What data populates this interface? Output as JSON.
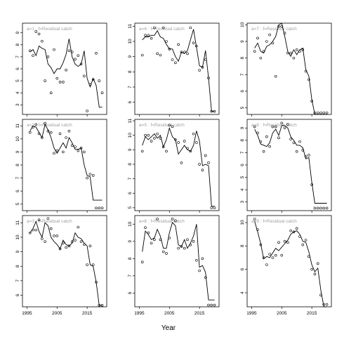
{
  "figure": {
    "xlabel": "Year",
    "x_ticks": [
      1995,
      2005,
      2015
    ]
  },
  "colors": {
    "line": "#000000",
    "strip": "#a0a0a0",
    "axis": "#000000"
  },
  "chart_data": [
    {
      "type": "line",
      "title": "a=1  :  f=Residual catch",
      "x": [
        1996,
        1997,
        1998,
        1999,
        2000,
        2001,
        2002,
        2003,
        2004,
        2005,
        2006,
        2007,
        2008,
        2009,
        2010,
        2011,
        2012,
        2013,
        2014,
        2015,
        2016,
        2017,
        2018,
        2019,
        2020
      ],
      "observed": [
        7.5,
        7.1,
        9.1,
        8.9,
        8.3,
        5.0,
        7.0,
        4.0,
        7.6,
        5.2,
        4.9,
        4.9,
        5.9,
        7.5,
        7.4,
        6.8,
        7.1,
        6.4,
        5.4,
        2.5,
        4.7,
        5.1,
        7.3,
        5.0,
        4.0
      ],
      "fitted": [
        7.4,
        7.6,
        7.1,
        7.9,
        7.7,
        7.6,
        6.4,
        6.1,
        5.6,
        6.0,
        6.0,
        6.5,
        7.2,
        8.5,
        7.0,
        6.4,
        6.2,
        6.4,
        7.5,
        5.2,
        4.5,
        5.2,
        4.6,
        2.8,
        2.8
      ],
      "ylim": [
        2.2,
        9.8
      ],
      "yticks": [
        3,
        4,
        5,
        6,
        7,
        8,
        9
      ]
    },
    {
      "type": "line",
      "title": "a=4  :  f=Residual catch",
      "x": [
        1996,
        1997,
        1998,
        1999,
        2000,
        2001,
        2002,
        2003,
        2004,
        2005,
        2006,
        2007,
        2008,
        2009,
        2010,
        2011,
        2012,
        2013,
        2014,
        2015,
        2016,
        2017,
        2018,
        2019,
        2020
      ],
      "observed": [
        9.1,
        10.4,
        10.4,
        10.2,
        10.9,
        9.2,
        9.1,
        10.9,
        10.0,
        9.5,
        8.8,
        8.6,
        9.8,
        9.3,
        9.3,
        9.2,
        10.9,
        9.9,
        9.7,
        8.1,
        8.3,
        8.8,
        7.6,
        5.4,
        5.4
      ],
      "fitted": [
        10.1,
        10.3,
        10.3,
        10.4,
        10.4,
        10.7,
        10.3,
        10.2,
        9.8,
        9.5,
        9.5,
        9.0,
        8.7,
        9.3,
        9.2,
        9.4,
        10.1,
        10.8,
        9.6,
        8.4,
        8.3,
        9.4,
        7.6,
        5.4,
        5.4
      ],
      "ylim": [
        5.2,
        11.2
      ],
      "yticks": [
        6,
        7,
        8,
        9,
        10,
        11
      ]
    },
    {
      "type": "line",
      "title": "a=7  :  f=Residual catch",
      "x": [
        1996,
        1997,
        1998,
        1999,
        2000,
        2001,
        2002,
        2003,
        2004,
        2005,
        2006,
        2007,
        2008,
        2009,
        2010,
        2011,
        2012,
        2013,
        2014,
        2015,
        2016,
        2017,
        2018,
        2019,
        2020
      ],
      "observed": [
        8.4,
        9.2,
        8.0,
        8.4,
        9.0,
        9.4,
        8.9,
        6.9,
        9.9,
        9.9,
        9.5,
        8.3,
        8.3,
        8.0,
        8.5,
        8.4,
        8.5,
        7.2,
        6.7,
        5.4,
        4.7,
        4.7,
        4.7,
        4.7,
        4.7
      ],
      "fitted": [
        8.6,
        8.9,
        8.4,
        8.3,
        8.7,
        8.8,
        9.0,
        9.3,
        10.0,
        10.1,
        9.3,
        8.4,
        8.1,
        8.5,
        8.2,
        8.5,
        8.6,
        7.3,
        6.9,
        5.5,
        4.6,
        4.6,
        4.6,
        4.6,
        4.6
      ],
      "ylim": [
        4.6,
        10.1
      ],
      "yticks": [
        5,
        6,
        7,
        8,
        9,
        10
      ]
    },
    {
      "type": "line",
      "title": "a=2  :  f=Residual catch",
      "x": [
        1996,
        1997,
        1998,
        1999,
        2000,
        2001,
        2002,
        2003,
        2004,
        2005,
        2006,
        2007,
        2008,
        2009,
        2010,
        2011,
        2012,
        2013,
        2014,
        2015,
        2016,
        2017,
        2018,
        2019,
        2020
      ],
      "observed": [
        10.5,
        10.9,
        11.1,
        10.4,
        10.1,
        11.2,
        10.6,
        10.5,
        8.9,
        9.1,
        10.4,
        9.0,
        10.1,
        10.6,
        9.5,
        9.4,
        9.1,
        9.3,
        9.0,
        7.0,
        7.3,
        7.2,
        4.7,
        4.7,
        4.7
      ],
      "fitted": [
        10.6,
        11.0,
        10.9,
        10.5,
        10.1,
        11.1,
        10.7,
        10.1,
        9.3,
        8.9,
        9.3,
        9.7,
        9.3,
        10.1,
        9.7,
        9.2,
        9.2,
        9.3,
        8.0,
        7.2,
        7.1,
        5.3,
        5.3,
        5.3,
        5.3
      ],
      "ylim": [
        4.5,
        11.5
      ],
      "yticks": [
        5,
        6,
        7,
        8,
        9,
        10,
        11
      ]
    },
    {
      "type": "line",
      "title": "a=5  :  f=Residual catch",
      "x": [
        1996,
        1997,
        1998,
        1999,
        2000,
        2001,
        2002,
        2003,
        2004,
        2005,
        2006,
        2007,
        2008,
        2009,
        2010,
        2011,
        2012,
        2013,
        2014,
        2015,
        2016,
        2017,
        2018,
        2019,
        2020
      ],
      "observed": [
        8.9,
        10.0,
        10.0,
        9.6,
        9.8,
        10.1,
        9.8,
        9.2,
        8.9,
        10.7,
        10.6,
        9.7,
        9.5,
        8.1,
        9.6,
        9.1,
        8.9,
        10.1,
        9.5,
        8.0,
        7.6,
        8.6,
        8.1,
        5.0,
        5.0
      ],
      "fitted": [
        9.3,
        9.9,
        9.7,
        9.9,
        10.1,
        9.8,
        10.0,
        9.2,
        9.7,
        10.5,
        9.9,
        9.7,
        8.7,
        9.0,
        9.3,
        9.0,
        8.9,
        9.3,
        10.3,
        9.6,
        7.9,
        8.0,
        7.9,
        5.1,
        5.1
      ],
      "ylim": [
        4.8,
        11.1
      ],
      "yticks": [
        5,
        6,
        7,
        8,
        9,
        10,
        11
      ]
    },
    {
      "type": "line",
      "title": "a=8  :  f=Residual catch",
      "x": [
        1996,
        1997,
        1998,
        1999,
        2000,
        2001,
        2002,
        2003,
        2004,
        2005,
        2006,
        2007,
        2008,
        2009,
        2010,
        2011,
        2012,
        2013,
        2014,
        2015,
        2016,
        2017,
        2018,
        2019,
        2020
      ],
      "observed": [
        9.1,
        8.6,
        7.9,
        7.1,
        8.3,
        7.5,
        9.1,
        9.1,
        8.2,
        9.4,
        9.0,
        9.3,
        8.1,
        7.8,
        7.1,
        7.9,
        7.2,
        6.7,
        6.8,
        4.4,
        2.5,
        2.5,
        2.5,
        2.5,
        2.5
      ],
      "fitted": [
        8.9,
        8.4,
        7.7,
        7.6,
        7.5,
        7.8,
        8.6,
        8.9,
        8.4,
        9.2,
        9.2,
        9.0,
        8.3,
        8.0,
        7.6,
        7.6,
        7.4,
        6.5,
        6.6,
        4.6,
        2.9,
        2.9,
        2.9,
        2.9,
        2.9
      ],
      "ylim": [
        2.3,
        9.7
      ],
      "yticks": [
        3,
        4,
        5,
        6,
        7,
        8,
        9
      ]
    },
    {
      "type": "line",
      "title": "a=3  :  f=Residual catch",
      "x": [
        1996,
        1997,
        1998,
        1999,
        2000,
        2001,
        2002,
        2003,
        2004,
        2005,
        2006,
        2007,
        2008,
        2009,
        2010,
        2011,
        2012,
        2013,
        2014,
        2015,
        2016,
        2017,
        2018,
        2019,
        2020
      ],
      "observed": [
        10.3,
        10.5,
        10.5,
        11.2,
        9.9,
        9.7,
        11.3,
        10.6,
        10.1,
        10.1,
        9.2,
        9.6,
        9.3,
        9.4,
        9.7,
        9.8,
        10.7,
        9.7,
        9.5,
        8.1,
        9.4,
        8.1,
        6.9,
        5.3,
        5.3
      ],
      "fitted": [
        10.3,
        10.6,
        11.1,
        10.4,
        10.0,
        11.0,
        10.8,
        10.0,
        9.7,
        9.5,
        9.2,
        9.8,
        9.5,
        9.4,
        9.6,
        10.3,
        10.0,
        9.9,
        9.6,
        9.4,
        8.1,
        8.0,
        6.9,
        5.3,
        5.3
      ],
      "ylim": [
        5.2,
        11.5
      ],
      "yticks": [
        6,
        7,
        8,
        9,
        10,
        11
      ]
    },
    {
      "type": "line",
      "title": "a=6  :  f=Residual catch",
      "x": [
        1996,
        1997,
        1998,
        1999,
        2000,
        2001,
        2002,
        2003,
        2004,
        2005,
        2006,
        2007,
        2008,
        2009,
        2010,
        2011,
        2012,
        2013,
        2014,
        2015,
        2016,
        2017,
        2018,
        2019,
        2020
      ],
      "observed": [
        7.8,
        9.8,
        9.5,
        8.9,
        9.1,
        10.3,
        9.1,
        8.4,
        8.3,
        9.2,
        10.3,
        10.2,
        8.6,
        8.7,
        8.6,
        9.1,
        8.8,
        9.0,
        7.9,
        7.3,
        8.0,
        6.9,
        5.3,
        5.3,
        5.3
      ],
      "fitted": [
        8.4,
        9.6,
        9.4,
        9.1,
        9.2,
        9.7,
        9.3,
        8.6,
        8.6,
        9.5,
        10.1,
        9.9,
        8.8,
        8.7,
        9.1,
        8.6,
        8.9,
        9.3,
        10.0,
        7.5,
        7.6,
        7.2,
        5.6,
        5.6,
        5.6
      ],
      "ylim": [
        5.2,
        10.5
      ],
      "yticks": [
        6,
        7,
        8,
        9,
        10
      ]
    },
    {
      "type": "line",
      "title": "a=9  :  f=Residual catch",
      "x": [
        1996,
        1997,
        1998,
        1999,
        2000,
        2001,
        2002,
        2003,
        2004,
        2005,
        2006,
        2007,
        2008,
        2009,
        2010,
        2011,
        2012,
        2013,
        2014,
        2015,
        2016,
        2017,
        2018,
        2019,
        2020
      ],
      "observed": [
        10.3,
        9.4,
        8.1,
        7.0,
        6.4,
        7.3,
        7.0,
        7.2,
        8.3,
        7.2,
        8.4,
        8.3,
        9.3,
        9.2,
        9.5,
        8.8,
        8.1,
        8.5,
        7.1,
        6.0,
        5.6,
        6.5,
        3.8,
        3.0,
        3.0
      ],
      "fitted": [
        10.1,
        9.2,
        8.2,
        6.9,
        7.1,
        7.0,
        7.4,
        7.8,
        7.6,
        7.9,
        8.2,
        8.5,
        9.0,
        9.2,
        9.3,
        9.0,
        8.4,
        8.3,
        7.5,
        6.4,
        5.8,
        6.1,
        4.2,
        2.8,
        2.8
      ],
      "ylim": [
        2.8,
        10.6
      ],
      "yticks": [
        4,
        6,
        8,
        10
      ]
    }
  ]
}
